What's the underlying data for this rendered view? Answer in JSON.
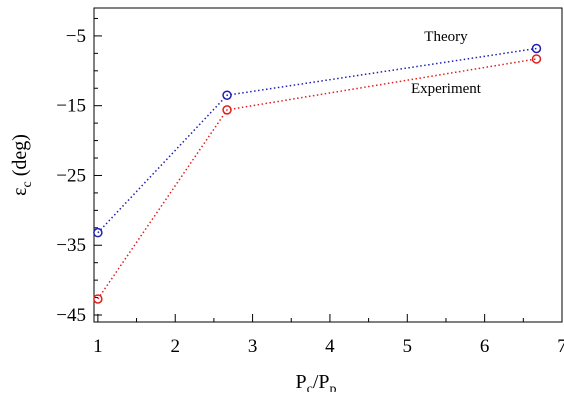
{
  "chart_data": {
    "type": "line",
    "xlabel": "P_c/P_p",
    "xlabel_parts": {
      "main": "P",
      "sub1": "c",
      "slash": "/P",
      "sub2": "p"
    },
    "ylabel": "ε_c (deg)",
    "ylabel_parts": {
      "main": "ε",
      "sub": "c",
      "rest": " (deg)"
    },
    "xlim": [
      0.95,
      7.0
    ],
    "ylim": [
      -46,
      -1
    ],
    "x_ticks": [
      1,
      2,
      3,
      4,
      5,
      6,
      7
    ],
    "x_tick_labels": [
      "1",
      "2",
      "3",
      "4",
      "5",
      "6",
      "7"
    ],
    "y_ticks": [
      -5,
      -15,
      -25,
      -35,
      -45
    ],
    "y_tick_labels": [
      "−5",
      "−15",
      "−25",
      "−35",
      "−45"
    ],
    "grid": false,
    "series": [
      {
        "name": "Theory",
        "color": "#1f1fb4",
        "marker": "open-circle",
        "line_style": "dotted",
        "x": [
          1,
          2.67,
          6.67
        ],
        "y": [
          -33.2,
          -13.5,
          -6.8
        ]
      },
      {
        "name": "Experiment",
        "color": "#e0201c",
        "marker": "open-circle",
        "line_style": "dotted",
        "x": [
          1,
          2.67,
          6.67
        ],
        "y": [
          -42.7,
          -15.6,
          -8.3
        ]
      }
    ],
    "annotations": [
      {
        "text": "Theory",
        "series": 0,
        "anchor_x": 5.5,
        "anchor_y": -5.0
      },
      {
        "text": "Experiment",
        "series": 1,
        "anchor_x": 5.5,
        "anchor_y": -12.5
      }
    ]
  }
}
